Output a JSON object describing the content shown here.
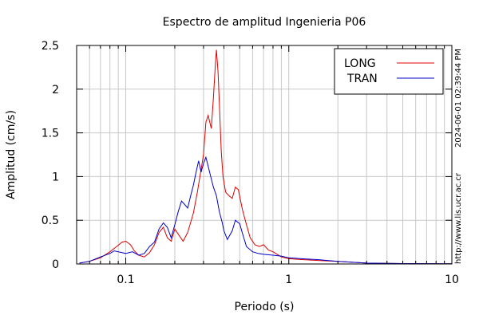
{
  "chart_data": {
    "type": "line",
    "title": "Espectro de amplitud Ingenieria P06",
    "xlabel": "Periodo (s)",
    "ylabel": "Amplitud (cm/s)",
    "xscale": "log",
    "xlim": [
      0.05,
      10
    ],
    "ylim": [
      0,
      2.5
    ],
    "x_major_ticks": [
      {
        "value": 0.1,
        "label": "0.1"
      },
      {
        "value": 1,
        "label": "1"
      },
      {
        "value": 10,
        "label": "10"
      }
    ],
    "y_ticks": [
      {
        "value": 0,
        "label": "0"
      },
      {
        "value": 0.5,
        "label": "0.5"
      },
      {
        "value": 1,
        "label": "1"
      },
      {
        "value": 1.5,
        "label": "1.5"
      },
      {
        "value": 2,
        "label": "2"
      },
      {
        "value": 2.5,
        "label": "2.5"
      }
    ],
    "grid": true,
    "legend_position": "top-right",
    "series": [
      {
        "name": "LONG",
        "color": "#dd0000",
        "points": [
          [
            0.052,
            0.01
          ],
          [
            0.06,
            0.03
          ],
          [
            0.07,
            0.07
          ],
          [
            0.08,
            0.14
          ],
          [
            0.088,
            0.2
          ],
          [
            0.095,
            0.25
          ],
          [
            0.1,
            0.26
          ],
          [
            0.107,
            0.22
          ],
          [
            0.113,
            0.15
          ],
          [
            0.12,
            0.1
          ],
          [
            0.13,
            0.08
          ],
          [
            0.14,
            0.13
          ],
          [
            0.15,
            0.22
          ],
          [
            0.16,
            0.36
          ],
          [
            0.17,
            0.42
          ],
          [
            0.18,
            0.3
          ],
          [
            0.19,
            0.26
          ],
          [
            0.2,
            0.4
          ],
          [
            0.21,
            0.34
          ],
          [
            0.225,
            0.26
          ],
          [
            0.24,
            0.36
          ],
          [
            0.26,
            0.58
          ],
          [
            0.275,
            0.82
          ],
          [
            0.29,
            1.08
          ],
          [
            0.3,
            1.25
          ],
          [
            0.31,
            1.62
          ],
          [
            0.32,
            1.7
          ],
          [
            0.335,
            1.55
          ],
          [
            0.345,
            1.9
          ],
          [
            0.355,
            2.3
          ],
          [
            0.36,
            2.45
          ],
          [
            0.368,
            2.2
          ],
          [
            0.375,
            1.85
          ],
          [
            0.385,
            1.3
          ],
          [
            0.395,
            1.0
          ],
          [
            0.41,
            0.82
          ],
          [
            0.43,
            0.78
          ],
          [
            0.45,
            0.75
          ],
          [
            0.47,
            0.88
          ],
          [
            0.49,
            0.85
          ],
          [
            0.52,
            0.62
          ],
          [
            0.55,
            0.45
          ],
          [
            0.58,
            0.3
          ],
          [
            0.62,
            0.22
          ],
          [
            0.66,
            0.2
          ],
          [
            0.7,
            0.22
          ],
          [
            0.75,
            0.16
          ],
          [
            0.8,
            0.14
          ],
          [
            0.85,
            0.11
          ],
          [
            0.9,
            0.08
          ],
          [
            1.0,
            0.06
          ],
          [
            1.2,
            0.05
          ],
          [
            1.5,
            0.04
          ],
          [
            2.0,
            0.03
          ],
          [
            3.0,
            0.01
          ],
          [
            5.0,
            0.005
          ],
          [
            10.0,
            0.002
          ]
        ]
      },
      {
        "name": "TRAN",
        "color": "#0000cc",
        "points": [
          [
            0.052,
            0.01
          ],
          [
            0.06,
            0.03
          ],
          [
            0.07,
            0.08
          ],
          [
            0.08,
            0.12
          ],
          [
            0.085,
            0.15
          ],
          [
            0.095,
            0.13
          ],
          [
            0.1,
            0.12
          ],
          [
            0.11,
            0.14
          ],
          [
            0.12,
            0.1
          ],
          [
            0.13,
            0.12
          ],
          [
            0.14,
            0.2
          ],
          [
            0.15,
            0.25
          ],
          [
            0.16,
            0.4
          ],
          [
            0.17,
            0.47
          ],
          [
            0.18,
            0.42
          ],
          [
            0.19,
            0.3
          ],
          [
            0.2,
            0.45
          ],
          [
            0.21,
            0.6
          ],
          [
            0.22,
            0.72
          ],
          [
            0.23,
            0.68
          ],
          [
            0.24,
            0.64
          ],
          [
            0.25,
            0.78
          ],
          [
            0.26,
            0.9
          ],
          [
            0.27,
            1.05
          ],
          [
            0.28,
            1.18
          ],
          [
            0.29,
            1.05
          ],
          [
            0.3,
            1.15
          ],
          [
            0.31,
            1.22
          ],
          [
            0.32,
            1.12
          ],
          [
            0.33,
            1.02
          ],
          [
            0.345,
            0.88
          ],
          [
            0.36,
            0.78
          ],
          [
            0.375,
            0.6
          ],
          [
            0.39,
            0.48
          ],
          [
            0.4,
            0.38
          ],
          [
            0.42,
            0.28
          ],
          [
            0.45,
            0.38
          ],
          [
            0.47,
            0.5
          ],
          [
            0.5,
            0.46
          ],
          [
            0.52,
            0.35
          ],
          [
            0.55,
            0.2
          ],
          [
            0.6,
            0.14
          ],
          [
            0.65,
            0.12
          ],
          [
            0.7,
            0.11
          ],
          [
            0.8,
            0.1
          ],
          [
            0.9,
            0.09
          ],
          [
            1.0,
            0.07
          ],
          [
            1.2,
            0.06
          ],
          [
            1.5,
            0.05
          ],
          [
            2.0,
            0.03
          ],
          [
            3.0,
            0.01
          ],
          [
            5.0,
            0.005
          ],
          [
            10.0,
            0.002
          ]
        ]
      }
    ]
  },
  "side_text": {
    "timestamp": "2024-06-01 02:39:44 PM",
    "url": "http://www.lis.ucr.ac.cr"
  }
}
